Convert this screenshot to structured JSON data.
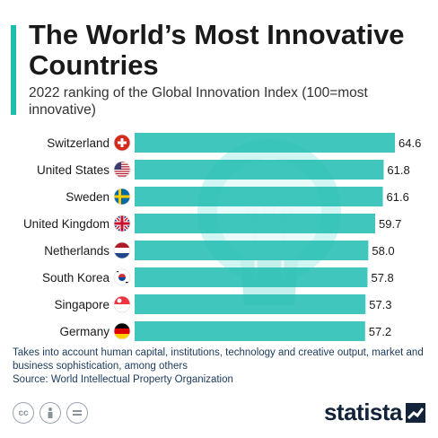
{
  "header": {
    "title": "The World’s Most Innovative Countries",
    "subtitle": "2022 ranking of the Global Innovation Index (100=most innovative)"
  },
  "chart_data": {
    "type": "bar",
    "orientation": "horizontal",
    "categories": [
      "Switzerland",
      "United States",
      "Sweden",
      "United Kingdom",
      "Netherlands",
      "South Korea",
      "Singapore",
      "Germany"
    ],
    "values": [
      64.6,
      61.8,
      61.6,
      59.7,
      58.0,
      57.8,
      57.3,
      57.2
    ],
    "value_labels": [
      "64.6",
      "61.8",
      "61.6",
      "59.7",
      "58.0",
      "57.8",
      "57.3",
      "57.2"
    ],
    "flags": [
      "switzerland-flag-icon",
      "usa-flag-icon",
      "sweden-flag-icon",
      "uk-flag-icon",
      "netherlands-flag-icon",
      "south-korea-flag-icon",
      "singapore-flag-icon",
      "germany-flag-icon"
    ],
    "bar_color": "#1fbcb0",
    "background_illustration": "lightbulb-icon"
  },
  "footer": {
    "note": "Takes into account human capital, institutions, technology and creative output, market and business sophistication, among others",
    "source": "Source: World Intellectual Property Organization",
    "brand": "statista",
    "license_icons": [
      "cc-icon",
      "by-icon",
      "nd-icon"
    ]
  },
  "colors": {
    "accent": "#1fbcb0",
    "brand_dark": "#12233a"
  }
}
